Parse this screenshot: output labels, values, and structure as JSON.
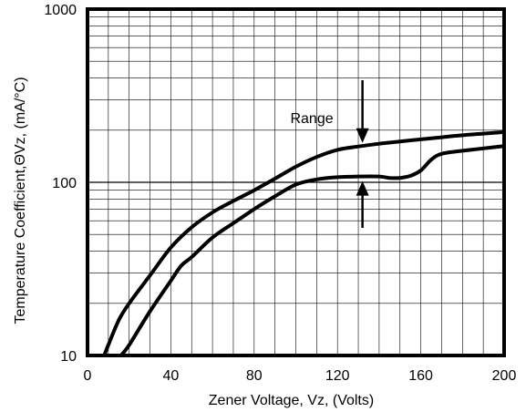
{
  "chart_data": {
    "type": "line",
    "title": "",
    "xlabel": "Zener Voltage, Vz, (Volts)",
    "ylabel": "Temperature Coefficient,ΘVz,  (mA/°C)",
    "xlim": [
      0,
      200
    ],
    "ylim": [
      10,
      1000
    ],
    "yscale": "log",
    "grid": true,
    "x_ticks": [
      0,
      40,
      80,
      120,
      160,
      200
    ],
    "x_tick_labels": [
      "0",
      "40",
      "80",
      "120",
      "160",
      "200"
    ],
    "y_ticks": [
      10,
      100,
      1000
    ],
    "y_tick_labels": [
      "10",
      "100",
      "1000"
    ],
    "series": [
      {
        "points": [
          [
            8,
            10
          ],
          [
            10,
            11.5
          ],
          [
            15,
            16
          ],
          [
            20,
            20
          ],
          [
            30,
            29
          ],
          [
            40,
            42
          ],
          [
            50,
            55
          ],
          [
            60,
            67
          ],
          [
            70,
            78
          ],
          [
            80,
            90
          ],
          [
            90,
            105
          ],
          [
            100,
            123
          ],
          [
            110,
            140
          ],
          [
            120,
            154
          ],
          [
            130,
            161
          ],
          [
            140,
            167
          ],
          [
            150,
            172
          ],
          [
            160,
            177
          ],
          [
            170,
            182
          ],
          [
            180,
            187
          ],
          [
            190,
            191
          ],
          [
            200,
            195
          ]
        ]
      },
      {
        "points": [
          [
            16,
            10
          ],
          [
            20,
            11.5
          ],
          [
            30,
            18
          ],
          [
            40,
            27
          ],
          [
            45,
            33
          ],
          [
            50,
            37
          ],
          [
            60,
            48
          ],
          [
            70,
            58
          ],
          [
            80,
            70
          ],
          [
            90,
            83
          ],
          [
            100,
            97
          ],
          [
            110,
            104
          ],
          [
            120,
            107
          ],
          [
            130,
            108
          ],
          [
            140,
            108
          ],
          [
            145,
            106
          ],
          [
            150,
            106
          ],
          [
            155,
            109
          ],
          [
            160,
            117
          ],
          [
            165,
            135
          ],
          [
            170,
            146
          ],
          [
            180,
            152
          ],
          [
            190,
            157
          ],
          [
            200,
            162
          ]
        ]
      }
    ],
    "annotations": [
      {
        "text": "Range"
      }
    ]
  }
}
